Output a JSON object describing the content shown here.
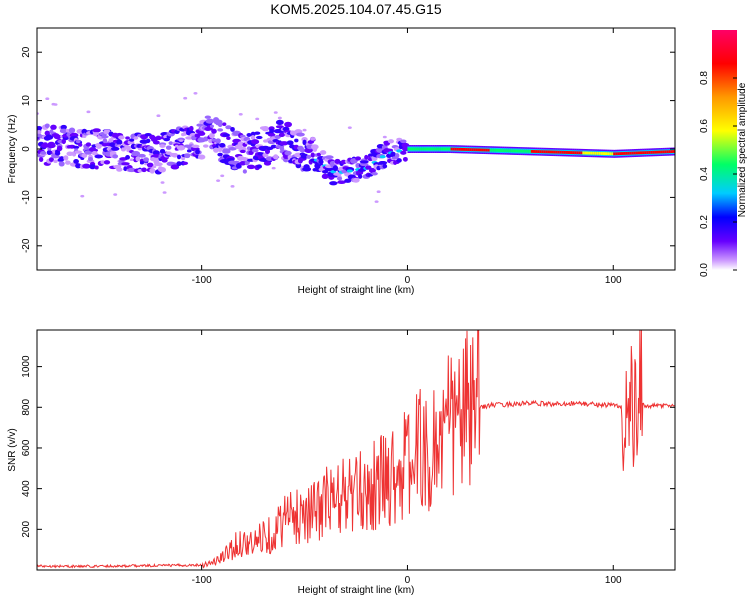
{
  "title": "KOM5.2025.104.07.45.G15",
  "chart_data": [
    {
      "type": "heatmap",
      "title": "KOM5.2025.104.07.45.G15",
      "xlabel": "Height of straight line (km)",
      "ylabel": "Frequency (Hz)",
      "xlim": [
        -180,
        130
      ],
      "ylim": [
        -25,
        25
      ],
      "x_ticks": [
        -100,
        0,
        100
      ],
      "y_ticks": [
        -20,
        -10,
        0,
        10,
        20
      ],
      "grid": false,
      "colorbar": {
        "label": "Normalized spectral amplitude",
        "range": [
          0,
          1
        ],
        "ticks": [
          0.0,
          0.2,
          0.4,
          0.6,
          0.8
        ],
        "colormap": [
          "#ffffff",
          "#cc99ff",
          "#6600ff",
          "#0000ff",
          "#00ccff",
          "#00ff66",
          "#ffff00",
          "#ff9900",
          "#ff0000",
          "#ff0066"
        ]
      },
      "dominant_frequency_track": [
        {
          "x": -180,
          "y": 1
        },
        {
          "x": -150,
          "y": 0
        },
        {
          "x": -120,
          "y": -1
        },
        {
          "x": -95,
          "y": 3
        },
        {
          "x": -80,
          "y": -1
        },
        {
          "x": -60,
          "y": 2
        },
        {
          "x": -45,
          "y": -2
        },
        {
          "x": -35,
          "y": -5
        },
        {
          "x": -20,
          "y": -4
        },
        {
          "x": -10,
          "y": -1
        },
        {
          "x": 0,
          "y": 0
        },
        {
          "x": 20,
          "y": 0
        },
        {
          "x": 60,
          "y": -0.5
        },
        {
          "x": 100,
          "y": -1
        },
        {
          "x": 130,
          "y": -0.5
        }
      ]
    },
    {
      "type": "line",
      "xlabel": "Height of straight line (km)",
      "ylabel": "SNR (v/v)",
      "xlim": [
        -180,
        130
      ],
      "ylim": [
        0,
        1180
      ],
      "x_ticks": [
        -100,
        0,
        100
      ],
      "y_ticks": [
        200,
        400,
        600,
        800,
        1000
      ],
      "grid": false,
      "series": [
        {
          "color": "#ee3333",
          "x": [
            -180,
            -160,
            -140,
            -120,
            -100,
            -95,
            -90,
            -85,
            -80,
            -75,
            -70,
            -65,
            -60,
            -55,
            -50,
            -45,
            -40,
            -35,
            -30,
            -25,
            -20,
            -15,
            -10,
            -5,
            0,
            5,
            8,
            10,
            12,
            15,
            20,
            25,
            30,
            35,
            40,
            50,
            60,
            70,
            80,
            90,
            100,
            105,
            108,
            110,
            112,
            115,
            120,
            125,
            130
          ],
          "y": [
            20,
            18,
            20,
            22,
            25,
            35,
            60,
            110,
            140,
            120,
            180,
            170,
            260,
            250,
            300,
            280,
            340,
            330,
            380,
            360,
            400,
            420,
            460,
            480,
            520,
            570,
            700,
            380,
            600,
            640,
            700,
            750,
            780,
            800,
            810,
            815,
            820,
            815,
            820,
            815,
            810,
            800,
            760,
            700,
            820,
            810,
            805,
            810,
            808
          ]
        }
      ]
    }
  ]
}
